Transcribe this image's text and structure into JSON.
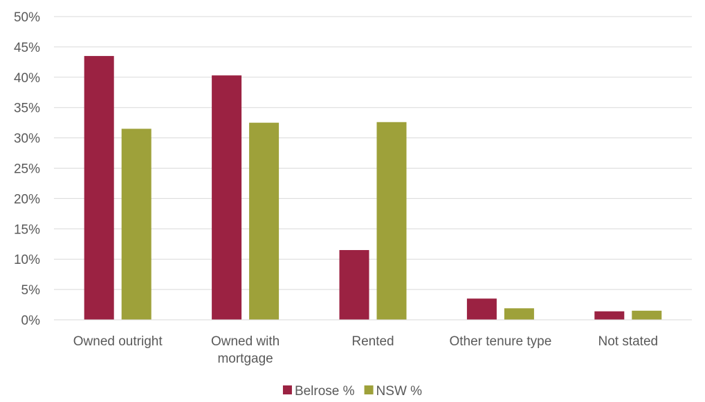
{
  "chart_data": {
    "type": "bar",
    "categories": [
      "Owned outright",
      "Owned with mortgage",
      "Rented",
      "Other tenure type",
      "Not stated"
    ],
    "category_label_lines": [
      [
        "Owned outright"
      ],
      [
        "Owned with",
        "mortgage"
      ],
      [
        "Rented"
      ],
      [
        "Other tenure type"
      ],
      [
        "Not stated"
      ]
    ],
    "series": [
      {
        "name": "Belrose %",
        "color": "#9b2242",
        "values": [
          43.5,
          40.3,
          11.5,
          3.5,
          1.4
        ]
      },
      {
        "name": "NSW %",
        "color": "#9ea13a",
        "values": [
          31.5,
          32.5,
          32.6,
          1.9,
          1.5
        ]
      }
    ],
    "yticks": [
      "0%",
      "5%",
      "10%",
      "15%",
      "20%",
      "25%",
      "30%",
      "35%",
      "40%",
      "45%",
      "50%"
    ],
    "ylim": [
      0,
      50
    ],
    "title": "",
    "xlabel": "",
    "ylabel": "",
    "grid": true,
    "legend_position": "bottom-center"
  }
}
